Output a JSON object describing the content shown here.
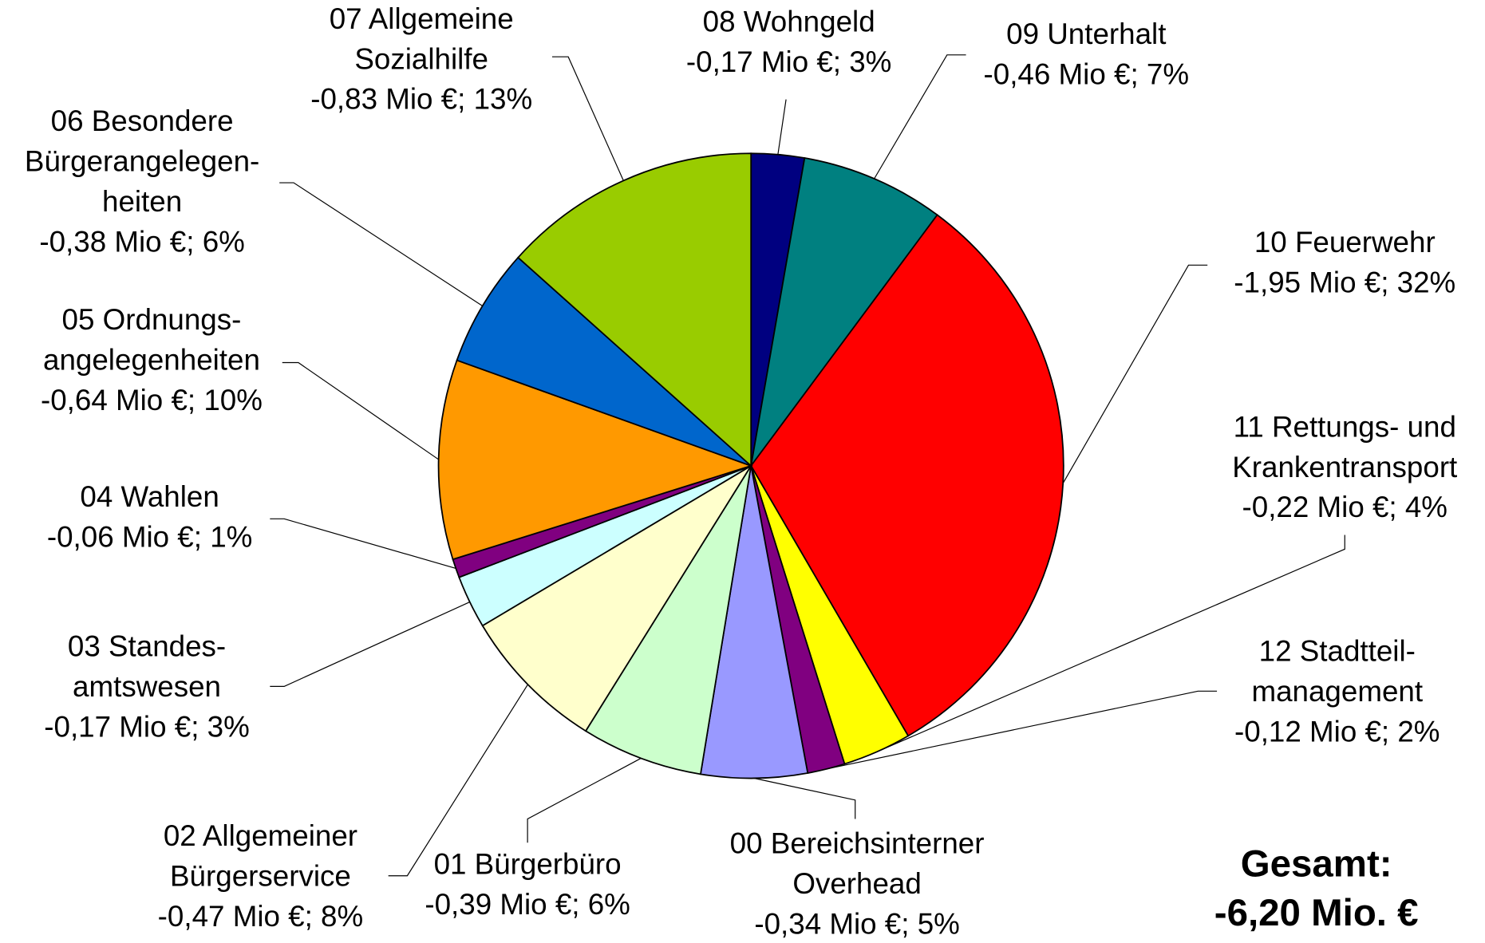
{
  "chart_data": {
    "type": "pie",
    "categories": [
      [
        "08 Wohngeld"
      ],
      [
        "09 Unterhalt"
      ],
      [
        "10 Feuerwehr"
      ],
      [
        "11 Rettungs- und",
        "Krankentransport"
      ],
      [
        "12 Stadtteil-",
        "management"
      ],
      [
        "00 Bereichsinterner",
        "Overhead"
      ],
      [
        "01 Bürgerbüro"
      ],
      [
        "02 Allgemeiner",
        "Bürgerservice"
      ],
      [
        "03 Standes-",
        "amtswesen"
      ],
      [
        "04 Wahlen"
      ],
      [
        "05 Ordnungs-",
        "angelegenheiten"
      ],
      [
        "06 Besondere",
        "Bürgerangelegen-",
        "heiten"
      ],
      [
        "07 Allgemeine",
        "Sozialhilfe"
      ]
    ],
    "values": [
      -0.17,
      -0.46,
      -1.95,
      -0.22,
      -0.12,
      -0.34,
      -0.39,
      -0.47,
      -0.17,
      -0.06,
      -0.64,
      -0.38,
      -0.83
    ],
    "value_labels": [
      "-0,17 Mio €; 3%",
      "-0,46 Mio €; 7%",
      "-1,95 Mio €; 32%",
      "-0,22 Mio €; 4%",
      "-0,12 Mio €; 2%",
      "-0,34 Mio €; 5%",
      "-0,39 Mio €; 6%",
      "-0,47 Mio €; 8%",
      "-0,17 Mio €; 3%",
      "-0,06 Mio €; 1%",
      "-0,64 Mio €; 10%",
      "-0,38 Mio €; 6%",
      "-0,83 Mio €; 13%"
    ],
    "colors": [
      "#000080",
      "#008080",
      "#ff0000",
      "#ffff00",
      "#800080",
      "#9999ff",
      "#ccffcc",
      "#ffffcc",
      "#ccffff",
      "#800080",
      "#ff9900",
      "#0066cc",
      "#99cc00"
    ],
    "annotation": [
      "Gesamt:",
      "-6,20 Mio. €"
    ]
  }
}
